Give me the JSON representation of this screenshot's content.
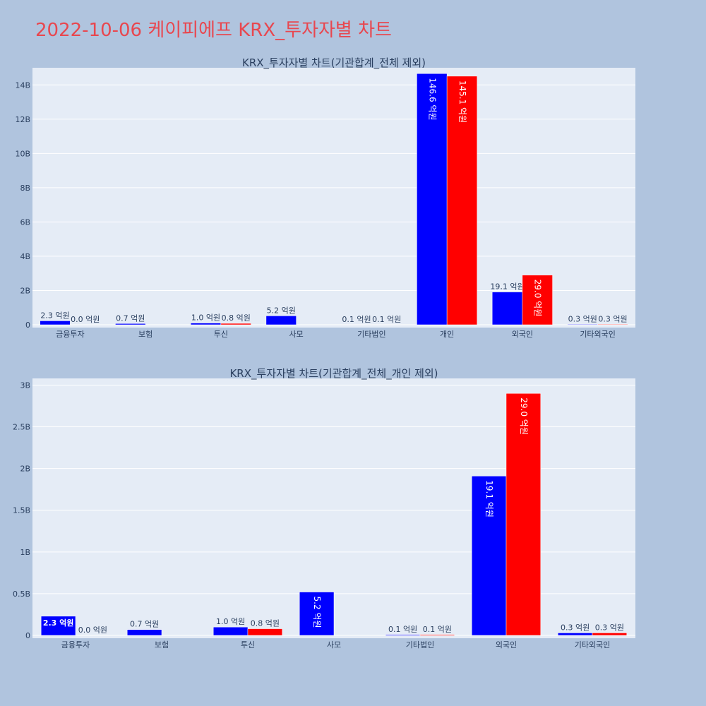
{
  "page_title": "2022-10-06 케이피에프 KRX_투자자별 차트",
  "colors": {
    "buy": "#0000ff",
    "sell": "#ff0000",
    "title": "#e8474f"
  },
  "chart_data": [
    {
      "type": "bar",
      "title": "KRX_투자자별 차트(기관합계_전체 제외)",
      "categories": [
        "금융투자",
        "보험",
        "투신",
        "사모",
        "기타법인",
        "개인",
        "외국인",
        "기타외국인"
      ],
      "ylim": [
        0,
        15000000000
      ],
      "yticks": [
        0,
        2000000000,
        4000000000,
        6000000000,
        8000000000,
        10000000000,
        12000000000,
        14000000000
      ],
      "ytick_labels": [
        "0",
        "2B",
        "4B",
        "6B",
        "8B",
        "10B",
        "12B",
        "14B"
      ],
      "grid": true,
      "series": [
        {
          "color": "#0000ff",
          "values": [
            230000000,
            70000000,
            100000000,
            520000000,
            10000000,
            14660000000,
            1910000000,
            30000000
          ],
          "labels": [
            "2.3 억원",
            "0.7 억원",
            "1.0 억원",
            "5.2 억원",
            "0.1 억원",
            "146.6 억원",
            "19.1 억원",
            "0.3 억원"
          ]
        },
        {
          "color": "#ff0000",
          "values": [
            0,
            0,
            80000000,
            0,
            10000000,
            14510000000,
            2900000000,
            30000000
          ],
          "labels": [
            "0.0 억원",
            "",
            "0.8 억원",
            "",
            "0.1 억원",
            "145.1 억원",
            "29.0 억원",
            "0.3 억원"
          ]
        }
      ]
    },
    {
      "type": "bar",
      "title": "KRX_투자자별 차트(기관합계_전체_개인 제외)",
      "categories": [
        "금융투자",
        "보험",
        "투신",
        "사모",
        "기타법인",
        "외국인",
        "기타외국인"
      ],
      "ylim": [
        0,
        3080000000
      ],
      "yticks": [
        0,
        500000000,
        1000000000,
        1500000000,
        2000000000,
        2500000000,
        3000000000
      ],
      "ytick_labels": [
        "0",
        "0.5B",
        "1B",
        "1.5B",
        "2B",
        "2.5B",
        "3B"
      ],
      "grid": true,
      "series": [
        {
          "color": "#0000ff",
          "values": [
            230000000,
            70000000,
            100000000,
            520000000,
            10000000,
            1910000000,
            30000000
          ],
          "labels": [
            "2.3 억원",
            "0.7 억원",
            "1.0 억원",
            "5.2 억원",
            "0.1 억원",
            "19.1 억원",
            "0.3 억원"
          ]
        },
        {
          "color": "#ff0000",
          "values": [
            0,
            0,
            80000000,
            0,
            10000000,
            2900000000,
            30000000
          ],
          "labels": [
            "0.0 억원",
            "",
            "0.8 억원",
            "",
            "0.1 억원",
            "29.0 억원",
            "0.3 억원"
          ]
        }
      ]
    }
  ]
}
